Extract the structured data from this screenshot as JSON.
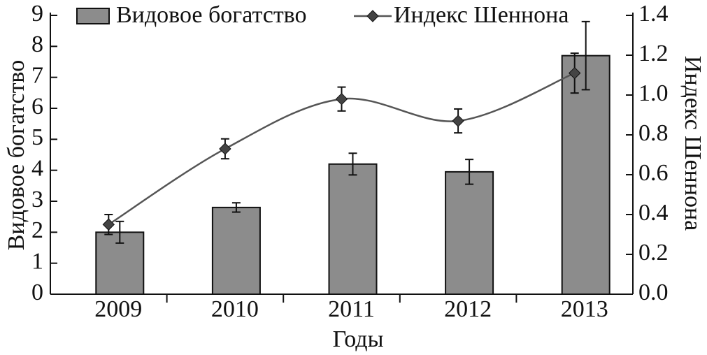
{
  "chart_data": {
    "type": "bar-line",
    "xlabel": "Годы",
    "ylabel": "Видовое богатство",
    "y2label": "Индекс Шеннона",
    "categories": [
      "2009",
      "2010",
      "2011",
      "2012",
      "2013"
    ],
    "series": [
      {
        "name": "Видовое богатство",
        "type": "bar",
        "color": "#8c8c8c",
        "values": [
          2.0,
          2.8,
          4.2,
          3.95,
          7.7
        ],
        "errors": [
          0.35,
          0.15,
          0.35,
          0.4,
          1.1
        ]
      },
      {
        "name": "Индекс Шеннона",
        "type": "line",
        "axis": "y2",
        "color": "#555555",
        "values": [
          0.35,
          0.73,
          0.98,
          0.87,
          1.11
        ],
        "errors": [
          0.05,
          0.05,
          0.06,
          0.06,
          0.1
        ]
      }
    ],
    "ylim": [
      0,
      9
    ],
    "yticks": [
      0,
      1,
      2,
      3,
      4,
      5,
      6,
      7,
      8,
      9
    ],
    "y2lim": [
      0,
      1.4
    ],
    "y2ticks": [
      {
        "value": 0,
        "label": "0.0"
      },
      0.2,
      0.4,
      0.6,
      0.8,
      {
        "value": 1,
        "label": "1.0"
      },
      1.2,
      1.4
    ],
    "legend": "top"
  }
}
